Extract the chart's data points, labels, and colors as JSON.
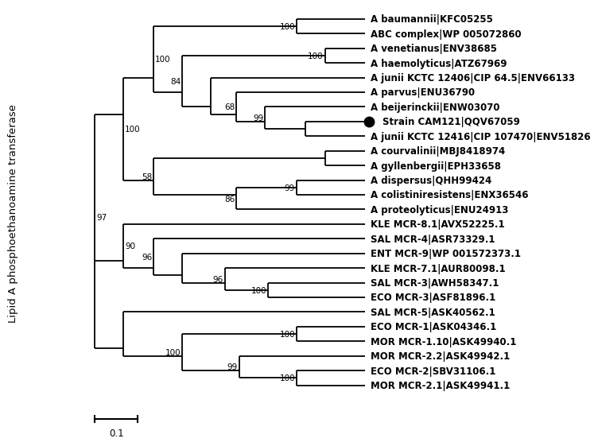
{
  "ylabel": "Lipid A phosphoethanoamine transferase",
  "scale_bar_label": "0.1",
  "background_color": "#ffffff",
  "taxa": [
    "A baumannii|KFC05255",
    "ABC complex|WP 005072860",
    "A venetianus|ENV38685",
    "A haemolyticus|ATZ67969",
    "A junii KCTC 12406|CIP 64.5|ENV66133",
    "A parvus|ENU36790",
    "A beijerinckii|ENW03070",
    "Strain CAM121|QQV67059",
    "A junii KCTC 12416|CIP 107470|ENV51826",
    "A courvalinii|MBJ8418974",
    "A gyllenbergii|EPH33658",
    "A dispersus|QHH99424",
    "A colistiniresistens|ENX36546",
    "A proteolyticus|ENU24913",
    "KLE MCR-8.1|AVX52225.1",
    "SAL MCR-4|ASR73329.1",
    "ENT MCR-9|WP 001572373.1",
    "KLE MCR-7.1|AUR80098.1",
    "SAL MCR-3|AWH58347.1",
    "ECO MCR-3|ASF81896.1",
    "SAL MCR-5|ASK40562.1",
    "ECO MCR-1|ASK04346.1",
    "MOR MCR-1.10|ASK49940.1",
    "MOR MCR-2.2|ASK49942.1",
    "ECO MCR-2|SBV31106.1",
    "MOR MCR-2.1|ASK49941.1"
  ],
  "special_taxa": [
    "Strain CAM121|QQV67059"
  ],
  "bold_taxa": [
    "A baumannii|KFC05255",
    "ABC complex|WP 005072860",
    "A venetianus|ENV38685",
    "A haemolyticus|ATZ67969",
    "A junii KCTC 12406|CIP 64.5|ENV66133",
    "A parvus|ENU36790",
    "A beijerinckii|ENW03070",
    "Strain CAM121|QQV67059",
    "A junii KCTC 12416|CIP 107470|ENV51826",
    "A courvalinii|MBJ8418974",
    "A gyllenbergii|EPH33658",
    "A dispersus|QHH99424",
    "A colistiniresistens|ENX36546",
    "A proteolyticus|ENU24913",
    "KLE MCR-8.1|AVX52225.1",
    "SAL MCR-4|ASR73329.1",
    "ENT MCR-9|WP 001572373.1",
    "KLE MCR-7.1|AUR80098.1",
    "SAL MCR-3|AWH58347.1",
    "ECO MCR-3|ASF81896.1",
    "SAL MCR-5|ASK40562.1",
    "ECO MCR-1|ASK04346.1",
    "MOR MCR-1.10|ASK49940.1",
    "MOR MCR-2.2|ASK49942.1",
    "ECO MCR-2|SBV31106.1",
    "MOR MCR-2.1|ASK49941.1"
  ],
  "lw": 1.3,
  "leaf_fontsize": 8.5,
  "bootstrap_fontsize": 7.5,
  "ylabel_fontsize": 9.5
}
